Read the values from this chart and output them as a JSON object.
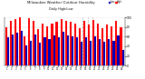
{
  "title": "Milwaukee Weather Outdoor Humidity",
  "subtitle": "Daily High/Low",
  "background_color": "#ffffff",
  "plot_bg_color": "#ffffff",
  "grid_color": "#cccccc",
  "high_color": "#ff0000",
  "low_color": "#0000bb",
  "dashed_line_color": "#aaaaaa",
  "dashed_line_indices": [
    17,
    18,
    19
  ],
  "high_values": [
    80,
    93,
    97,
    100,
    60,
    98,
    93,
    75,
    88,
    82,
    88,
    90,
    97,
    92,
    90,
    88,
    78,
    92,
    85,
    95,
    88,
    78,
    85,
    82,
    92,
    80
  ],
  "low_values": [
    58,
    65,
    68,
    72,
    42,
    52,
    65,
    48,
    58,
    55,
    62,
    58,
    70,
    62,
    60,
    58,
    50,
    58,
    52,
    60,
    55,
    50,
    55,
    52,
    62,
    32
  ],
  "ylim": [
    0,
    100
  ],
  "ytick_labels": [
    "0",
    "20",
    "40",
    "60",
    "80",
    "100"
  ],
  "ytick_vals": [
    0,
    20,
    40,
    60,
    80,
    100
  ],
  "num_bars": 26,
  "bar_width": 0.42,
  "legend_high": "High",
  "legend_low": "Low"
}
